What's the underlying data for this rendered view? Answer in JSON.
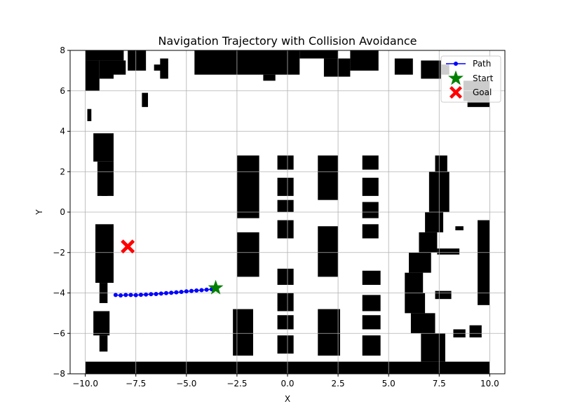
{
  "chart_data": {
    "type": "line",
    "title": "Navigation Trajectory with Collision Avoidance",
    "xlabel": "X",
    "ylabel": "Y",
    "xlim": [
      -10.75,
      10.75
    ],
    "ylim": [
      -8,
      8
    ],
    "grid": true,
    "legend": "top-right",
    "xticks": [
      -10.0,
      -7.5,
      -5.0,
      -2.5,
      0.0,
      2.5,
      5.0,
      7.5,
      10.0
    ],
    "xtick_labels": [
      "−10.0",
      "−7.5",
      "−5.0",
      "−2.5",
      "0.0",
      "2.5",
      "5.0",
      "7.5",
      "10.0"
    ],
    "yticks": [
      -8,
      -6,
      -4,
      -2,
      0,
      2,
      4,
      6,
      8
    ],
    "ytick_labels": [
      "−8",
      "−6",
      "−4",
      "−2",
      "0",
      "2",
      "4",
      "6",
      "8"
    ],
    "colors": {
      "path": "#0000ff",
      "start": "#008000",
      "goal": "#ff0000",
      "obstacle": "#000000"
    },
    "path": {
      "name": "Path",
      "x": [
        -8.5,
        -8.25,
        -8.0,
        -7.75,
        -7.5,
        -7.25,
        -7.0,
        -6.75,
        -6.5,
        -6.25,
        -6.0,
        -5.75,
        -5.5,
        -5.25,
        -5.0,
        -4.75,
        -4.5,
        -4.25,
        -4.0,
        -3.75,
        -3.6
      ],
      "y": [
        -4.1,
        -4.12,
        -4.1,
        -4.1,
        -4.11,
        -4.09,
        -4.08,
        -4.06,
        -4.05,
        -4.03,
        -4.01,
        -3.99,
        -3.97,
        -3.95,
        -3.92,
        -3.9,
        -3.88,
        -3.86,
        -3.84,
        -3.82,
        -3.75
      ]
    },
    "start": {
      "name": "Start",
      "x": -3.55,
      "y": -3.75
    },
    "goal": {
      "name": "Goal",
      "x": -7.9,
      "y": -1.7
    },
    "obstacles": [
      [
        -10.0,
        7.5,
        -8.1,
        8.0
      ],
      [
        -10.0,
        6.0,
        -9.3,
        7.5
      ],
      [
        -9.3,
        6.6,
        -8.6,
        7.5
      ],
      [
        -8.6,
        6.8,
        -8.0,
        7.5
      ],
      [
        -7.9,
        7.0,
        -7.0,
        8.0
      ],
      [
        -6.3,
        6.6,
        -5.9,
        7.6
      ],
      [
        -6.6,
        7.0,
        -6.2,
        7.3
      ],
      [
        -4.6,
        6.8,
        0.6,
        8.0
      ],
      [
        -1.2,
        6.5,
        -0.6,
        6.8
      ],
      [
        0.6,
        7.6,
        2.5,
        8.0
      ],
      [
        1.8,
        6.7,
        3.1,
        7.6
      ],
      [
        3.1,
        7.0,
        4.5,
        8.0
      ],
      [
        5.3,
        6.8,
        6.2,
        7.6
      ],
      [
        6.6,
        6.6,
        7.6,
        7.5
      ],
      [
        7.6,
        6.8,
        8.0,
        7.3
      ],
      [
        8.7,
        5.5,
        10.0,
        6.5
      ],
      [
        8.9,
        5.2,
        10.0,
        5.5
      ],
      [
        -7.2,
        5.2,
        -6.9,
        5.9
      ],
      [
        -9.9,
        4.5,
        -9.7,
        5.1
      ],
      [
        -9.6,
        2.5,
        -8.6,
        3.9
      ],
      [
        -9.4,
        0.8,
        -8.6,
        2.5
      ],
      [
        -9.2,
        0.8,
        -8.9,
        0.9
      ],
      [
        -9.5,
        -3.5,
        -8.6,
        -0.6
      ],
      [
        -9.3,
        -4.5,
        -8.9,
        -3.5
      ],
      [
        -9.6,
        -6.1,
        -8.8,
        -4.9
      ],
      [
        -9.3,
        -6.9,
        -8.9,
        -6.1
      ],
      [
        -10.0,
        -8.0,
        10.0,
        -7.4
      ],
      [
        -2.5,
        -0.3,
        -1.4,
        2.8
      ],
      [
        -2.5,
        -3.2,
        -1.4,
        -1.0
      ],
      [
        -2.7,
        -7.1,
        -1.7,
        -4.8
      ],
      [
        -0.5,
        2.1,
        0.3,
        2.8
      ],
      [
        -0.5,
        0.8,
        0.3,
        1.7
      ],
      [
        -0.5,
        0.0,
        0.3,
        0.6
      ],
      [
        -0.5,
        -1.3,
        0.3,
        -0.4
      ],
      [
        -0.5,
        -3.6,
        0.3,
        -2.8
      ],
      [
        -0.5,
        -4.9,
        0.3,
        -4.0
      ],
      [
        -0.5,
        -5.8,
        0.3,
        -5.1
      ],
      [
        -0.5,
        -7.0,
        0.3,
        -6.1
      ],
      [
        1.5,
        0.6,
        2.5,
        2.8
      ],
      [
        1.5,
        -3.2,
        2.5,
        -0.7
      ],
      [
        1.5,
        -7.1,
        2.6,
        -4.8
      ],
      [
        3.7,
        2.1,
        4.5,
        2.8
      ],
      [
        3.7,
        0.8,
        4.5,
        1.7
      ],
      [
        3.7,
        -0.3,
        4.5,
        0.5
      ],
      [
        3.7,
        -1.3,
        4.5,
        -0.6
      ],
      [
        3.7,
        -3.6,
        4.6,
        -2.9
      ],
      [
        3.7,
        -4.9,
        4.6,
        -4.1
      ],
      [
        3.7,
        -5.8,
        4.6,
        -5.1
      ],
      [
        3.7,
        -7.1,
        4.6,
        -6.1
      ],
      [
        7.3,
        2.0,
        7.9,
        2.8
      ],
      [
        7.0,
        0.0,
        8.0,
        2.0
      ],
      [
        6.8,
        -1.0,
        7.7,
        0.0
      ],
      [
        6.5,
        -2.0,
        7.4,
        -1.0
      ],
      [
        6.0,
        -3.0,
        7.1,
        -2.0
      ],
      [
        5.8,
        -4.0,
        6.7,
        -3.0
      ],
      [
        5.8,
        -5.0,
        6.8,
        -4.0
      ],
      [
        6.1,
        -6.0,
        7.3,
        -5.0
      ],
      [
        6.6,
        -7.4,
        7.8,
        -6.0
      ],
      [
        7.4,
        -2.1,
        8.5,
        -1.8
      ],
      [
        8.3,
        -0.9,
        8.7,
        -0.7
      ],
      [
        9.4,
        -4.6,
        10.0,
        -0.4
      ],
      [
        8.2,
        -6.2,
        8.8,
        -5.8
      ],
      [
        9.0,
        -6.2,
        9.6,
        -5.6
      ],
      [
        7.3,
        -4.3,
        8.1,
        -3.9
      ]
    ]
  }
}
